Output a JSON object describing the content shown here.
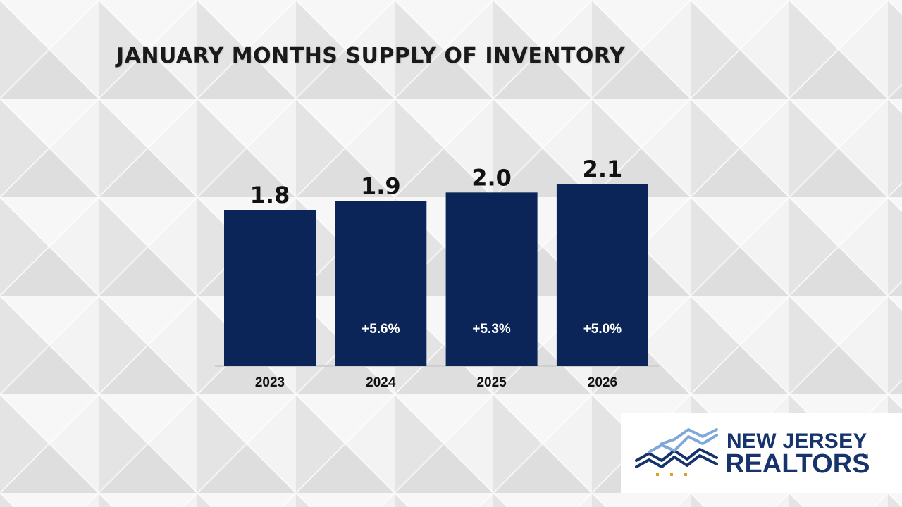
{
  "chart_data": {
    "type": "bar",
    "title": "JANUARY MONTHS SUPPLY OF INVENTORY",
    "categories": [
      "2023",
      "2024",
      "2025",
      "2026"
    ],
    "values": [
      1.8,
      1.9,
      2.0,
      2.1
    ],
    "value_labels": [
      "1.8",
      "1.9",
      "2.0",
      "2.1"
    ],
    "change_labels": [
      "",
      "+5.6%",
      "+5.3%",
      "+5.0%"
    ],
    "ylim": [
      0,
      2.1
    ],
    "bar_color": "#0b2559",
    "grid": false,
    "legend": "none"
  },
  "logo": {
    "line1": "NEW JERSEY",
    "line2": "REALTORS",
    "registered": "®",
    "colors": {
      "navy": "#16336b",
      "light_blue": "#7fa9d8",
      "gold": "#d9a520"
    }
  },
  "background": {
    "color": "#ececec",
    "pattern": "geometric-tiles"
  }
}
